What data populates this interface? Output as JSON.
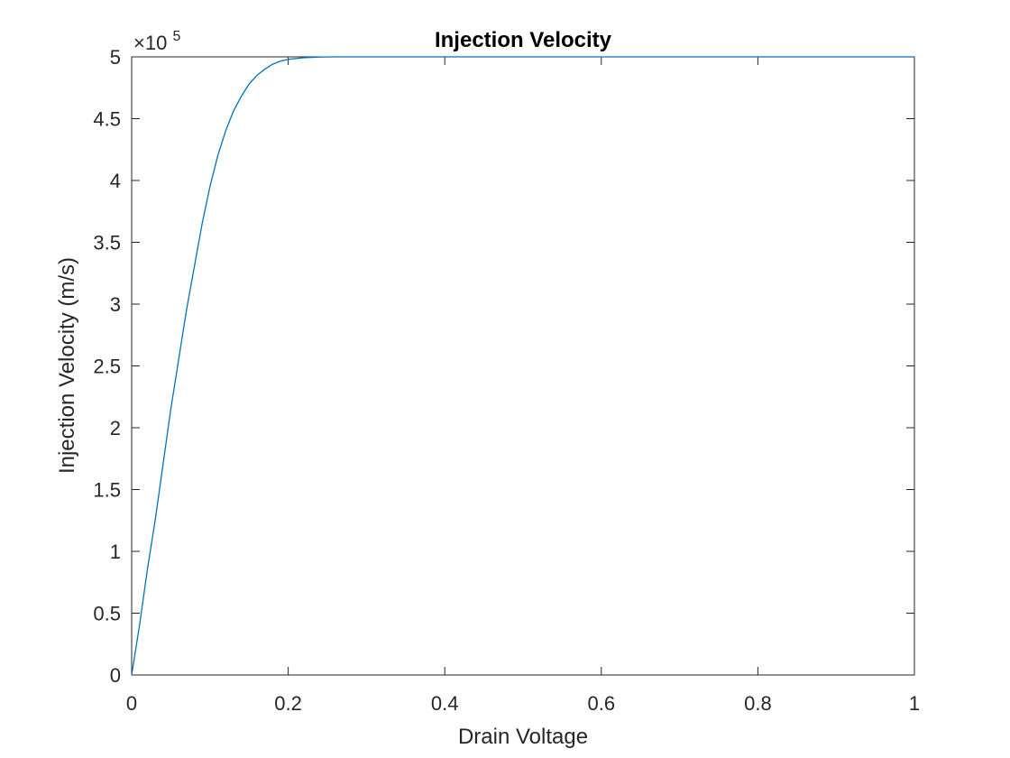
{
  "chart_data": {
    "type": "line",
    "title": "Injection Velocity",
    "xlabel": "Drain Voltage",
    "ylabel": "Injection Velocity (m/s)",
    "y_exponent_label": "×10",
    "y_exponent_power": "5",
    "xlim": [
      0,
      1
    ],
    "ylim": [
      0,
      500000
    ],
    "x_ticks": [
      0,
      0.2,
      0.4,
      0.6,
      0.8,
      1
    ],
    "x_tick_labels": [
      "0",
      "0.2",
      "0.4",
      "0.6",
      "0.8",
      "1"
    ],
    "y_ticks": [
      0,
      50000,
      100000,
      150000,
      200000,
      250000,
      300000,
      350000,
      400000,
      450000,
      500000
    ],
    "y_tick_labels": [
      "0",
      "0.5",
      "1",
      "1.5",
      "2",
      "2.5",
      "3",
      "3.5",
      "4",
      "4.5",
      "5"
    ],
    "grid": false,
    "series": [
      {
        "color": "#0072BD",
        "x": [
          0,
          0.01,
          0.02,
          0.03,
          0.04,
          0.05,
          0.06,
          0.07,
          0.08,
          0.09,
          0.1,
          0.11,
          0.12,
          0.13,
          0.14,
          0.15,
          0.16,
          0.17,
          0.18,
          0.19,
          0.2,
          0.22,
          0.24,
          0.26,
          0.28,
          0.3,
          0.4,
          0.5,
          0.6,
          0.7,
          0.8,
          0.9,
          1.0
        ],
        "y": [
          0,
          40000,
          85000,
          125000,
          170000,
          215000,
          255000,
          295000,
          330000,
          365000,
          395000,
          420000,
          440000,
          456000,
          468000,
          478000,
          485000,
          490000,
          494000,
          496500,
          498000,
          499300,
          499800,
          500000,
          500000,
          500000,
          500000,
          500000,
          500000,
          500000,
          500000,
          500000,
          500000
        ]
      }
    ]
  }
}
